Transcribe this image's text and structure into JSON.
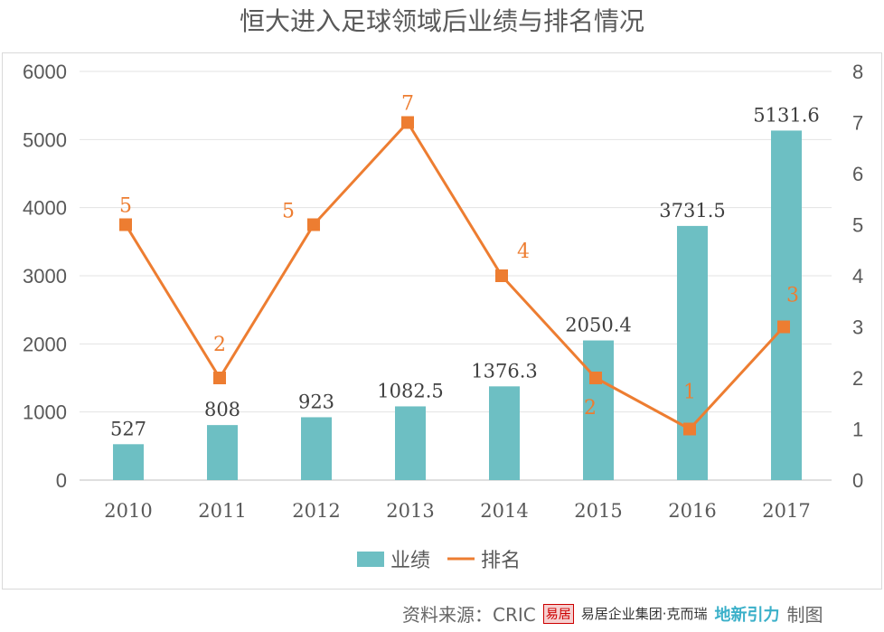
{
  "chart_data": {
    "type": "bar+line",
    "title": "恒大进入足球领域后业绩与排名情况",
    "categories": [
      "2010",
      "2011",
      "2012",
      "2013",
      "2014",
      "2015",
      "2016",
      "2017"
    ],
    "series": [
      {
        "name": "业绩",
        "type": "bar",
        "axis": "left",
        "color": "#6dbfc3",
        "values": [
          527,
          808,
          923,
          1082.5,
          1376.3,
          2050.4,
          3731.5,
          5131.6
        ],
        "labels": [
          "527",
          "808",
          "923",
          "1082.5",
          "1376.3",
          "2050.4",
          "3731.5",
          "5131.6"
        ]
      },
      {
        "name": "排名",
        "type": "line",
        "axis": "right",
        "color": "#ed7d31",
        "values": [
          5,
          2,
          5,
          7,
          4,
          2,
          1,
          3
        ],
        "labels": [
          "5",
          "2",
          "5",
          "7",
          "4",
          "2",
          "1",
          "3"
        ]
      }
    ],
    "left_axis": {
      "ylim": [
        0,
        6000
      ],
      "ticks": [
        "0",
        "1000",
        "2000",
        "3000",
        "4000",
        "5000",
        "6000"
      ]
    },
    "right_axis": {
      "ylim": [
        0,
        8
      ],
      "ticks": [
        "0",
        "1",
        "2",
        "3",
        "4",
        "5",
        "6",
        "7",
        "8"
      ]
    },
    "grid": true,
    "legend": "bottom"
  },
  "footer": {
    "source": "资料来源：CRIC",
    "seal": "易居",
    "group": "易居企业集团·克而瑞",
    "brand": "地新引力",
    "made": "制图"
  }
}
